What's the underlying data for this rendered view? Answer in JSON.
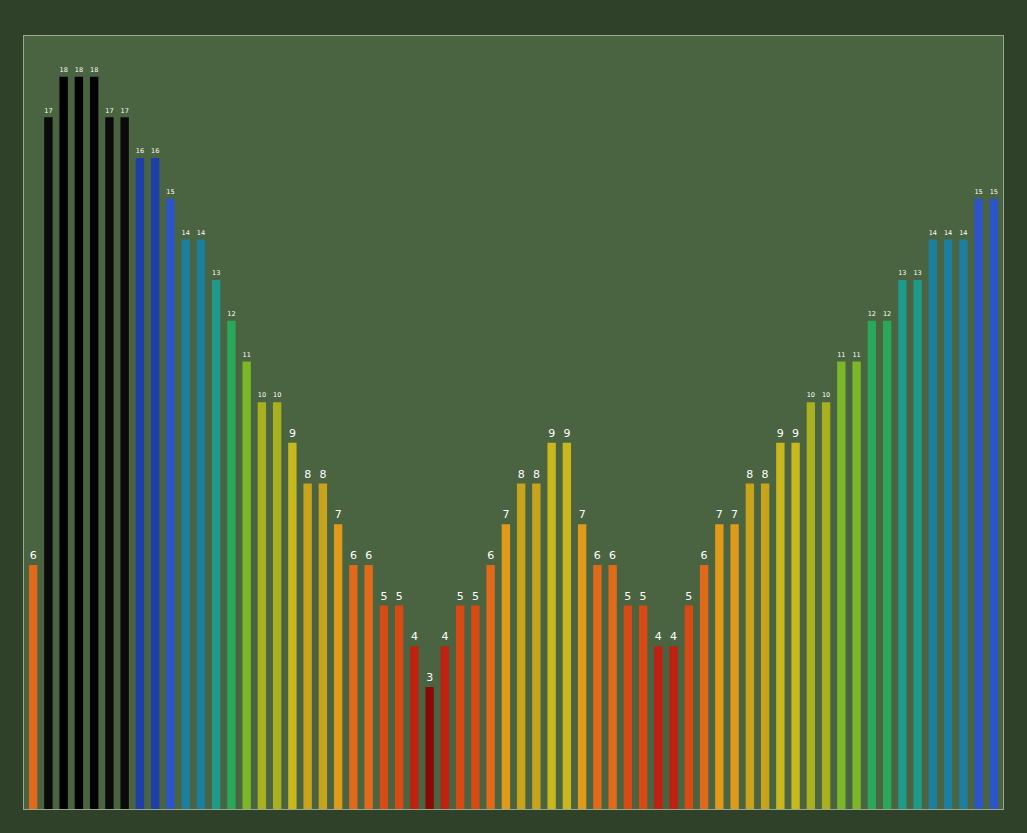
{
  "chart_data": {
    "type": "bar",
    "categories": [
      null,
      null,
      null,
      null,
      null,
      null,
      null,
      null,
      null,
      null,
      null,
      null,
      null,
      null,
      null,
      null,
      null,
      null,
      null,
      null,
      null,
      null,
      null,
      null,
      null,
      null,
      null,
      null,
      null,
      null,
      null,
      null,
      null,
      null,
      null,
      null,
      null,
      null,
      null,
      null,
      null,
      null,
      null,
      null,
      null,
      null,
      null,
      null,
      null,
      null,
      null,
      null,
      null,
      null,
      null,
      null,
      null,
      null,
      null,
      null,
      null,
      null,
      null,
      null
    ],
    "values": [
      6,
      17,
      18,
      18,
      18,
      17,
      17,
      16,
      16,
      15,
      14,
      14,
      13,
      12,
      11,
      10,
      10,
      9,
      8,
      8,
      7,
      6,
      6,
      5,
      5,
      4,
      3,
      4,
      5,
      5,
      6,
      7,
      8,
      8,
      9,
      9,
      7,
      6,
      6,
      5,
      5,
      4,
      4,
      5,
      6,
      7,
      7,
      8,
      8,
      9,
      9,
      10,
      10,
      11,
      11,
      12,
      12,
      13,
      13,
      14,
      14,
      14,
      15,
      15
    ],
    "colors": [
      "#e06a1a",
      "#0a0a0a",
      "#000000",
      "#000000",
      "#000000",
      "#0a0a0a",
      "#0a0a0a",
      "#1f3fa8",
      "#1f3fa8",
      "#2b55c8",
      "#1d7fa0",
      "#1d7fa0",
      "#1f9a8a",
      "#2aa85a",
      "#7ab82a",
      "#a8b020",
      "#a8b020",
      "#c8b81e",
      "#c8a41c",
      "#c8a41c",
      "#e09a1a",
      "#e06a1a",
      "#e06a1a",
      "#d84a14",
      "#d84a14",
      "#c02010",
      "#8a0a0a",
      "#c02010",
      "#d84a14",
      "#d84a14",
      "#e06a1a",
      "#e09a1a",
      "#c8a41c",
      "#c8a41c",
      "#c8b81e",
      "#c8b81e",
      "#e09a1a",
      "#e06a1a",
      "#e06a1a",
      "#d84a14",
      "#d84a14",
      "#c02010",
      "#c02010",
      "#d84a14",
      "#e06a1a",
      "#e09a1a",
      "#e09a1a",
      "#c8a41c",
      "#c8a41c",
      "#c8b81e",
      "#c8b81e",
      "#a8b020",
      "#a8b020",
      "#7ab82a",
      "#7ab82a",
      "#2aa85a",
      "#2aa85a",
      "#1f9a8a",
      "#1f9a8a",
      "#1d7fa0",
      "#1d7fa0",
      "#1d7fa0",
      "#2b55c8",
      "#2b55c8"
    ],
    "ylim": [
      0,
      19
    ],
    "tick_labels": false,
    "data_labels": true,
    "grid": false
  }
}
